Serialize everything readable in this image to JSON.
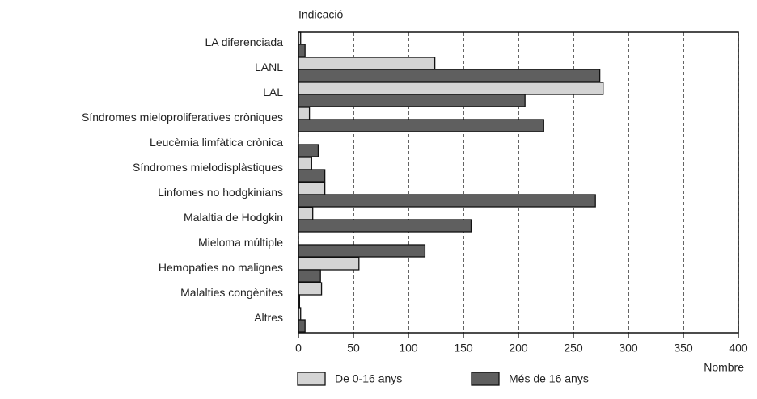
{
  "chart_data": {
    "type": "bar",
    "orientation": "horizontal",
    "y_label": "Indicació",
    "x_label": "Nombre",
    "categories": [
      "LA diferenciada",
      "LANL",
      "LAL",
      "Síndromes mieloproliferatives cròniques",
      "Leucèmia limfàtica crònica",
      "Síndromes mielodisplàstiques",
      "Linfomes no hodgkinians",
      "Malaltia de Hodgkin",
      "Mieloma múltiple",
      "Hemopaties no malignes",
      "Malalties congènites",
      "Altres"
    ],
    "series": [
      {
        "name": "De 0-16 anys",
        "color": "#d4d4d4",
        "values": [
          2,
          124,
          277,
          10,
          0,
          12,
          24,
          13,
          0,
          55,
          21,
          2
        ]
      },
      {
        "name": "Més de 16 anys",
        "color": "#5f5f5f",
        "values": [
          6,
          274,
          206,
          223,
          18,
          24,
          270,
          157,
          115,
          20,
          1,
          6
        ]
      }
    ],
    "xlim": [
      0,
      400
    ],
    "xticks": [
      0,
      50,
      100,
      150,
      200,
      250,
      300,
      350,
      400
    ],
    "grid": true
  }
}
